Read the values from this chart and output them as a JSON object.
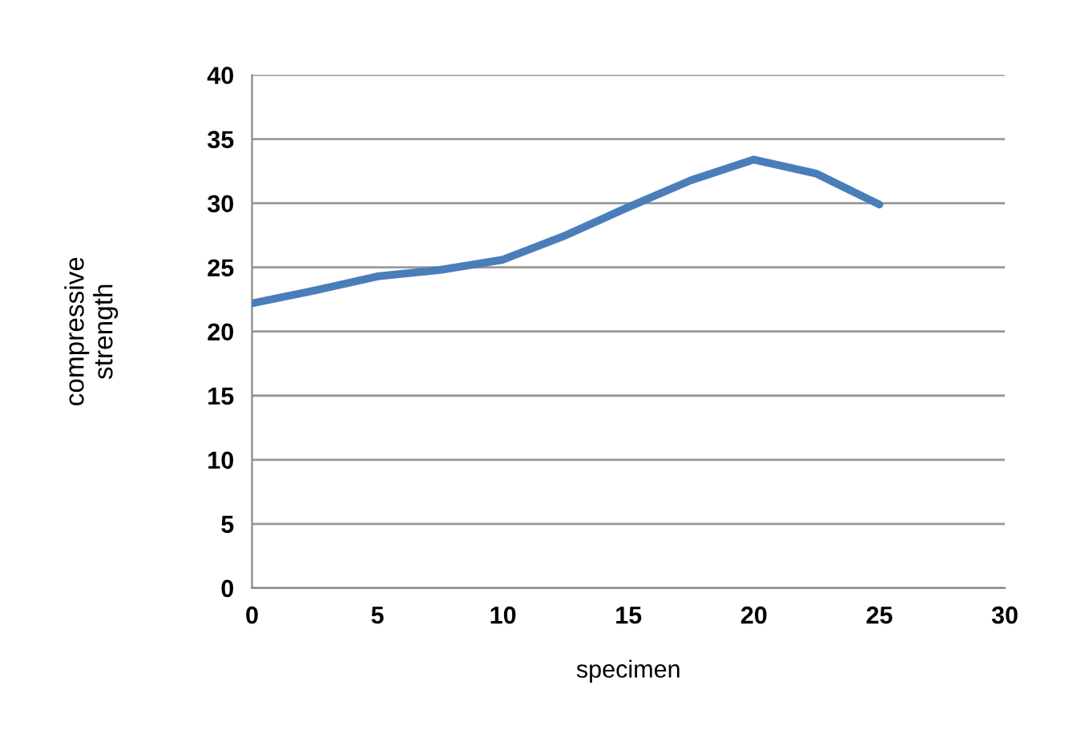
{
  "chart_data": {
    "type": "line",
    "xlabel": "specimen",
    "ylabel": "compressive\nstrength",
    "x": [
      0,
      2.5,
      5,
      7.5,
      10,
      12.5,
      15,
      17.5,
      20,
      22.5,
      25
    ],
    "series": [
      {
        "color": "#4a7ebb",
        "values": [
          22.2,
          23.2,
          24.3,
          24.8,
          25.6,
          27.5,
          29.7,
          31.8,
          33.4,
          32.3,
          29.9
        ]
      }
    ],
    "xlim": [
      0,
      30
    ],
    "xticks": [
      0,
      5,
      10,
      15,
      20,
      25,
      30
    ],
    "ylim": [
      0,
      40
    ],
    "yticks": [
      0,
      5,
      10,
      15,
      20,
      25,
      30,
      35,
      40
    ],
    "grid": "y",
    "marker": "none",
    "line_style": "solid"
  }
}
